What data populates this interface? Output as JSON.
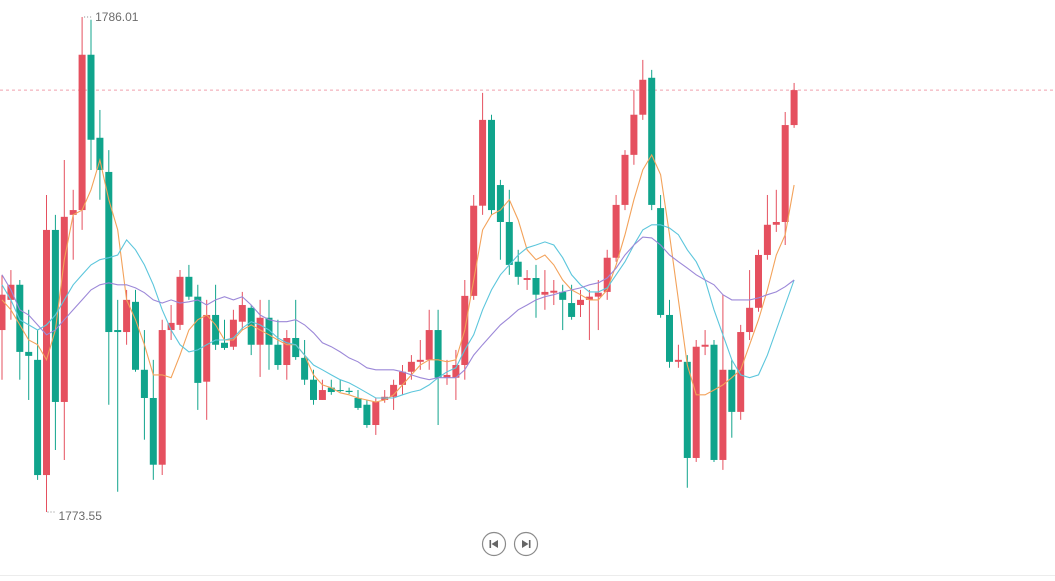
{
  "chart_data": {
    "type": "candlestick",
    "up_color": "#e5505f",
    "down_color": "#10a48c",
    "open": [
      1778.13,
      1778.89,
      1779.27,
      1777.58,
      1777.38,
      1774.48,
      1780.65,
      1776.32,
      1781.03,
      1781.15,
      1785.06,
      1782.97,
      1782.11,
      1778.13,
      1778.08,
      1778.84,
      1777.13,
      1776.42,
      1774.74,
      1778.13,
      1778.26,
      1779.47,
      1778.97,
      1776.83,
      1778.51,
      1777.81,
      1777.71,
      1778.34,
      1778.69,
      1777.76,
      1778.44,
      1777.76,
      1777.25,
      1777.93,
      1777.43,
      1776.88,
      1776.37,
      1776.68,
      1776.62,
      1776.6,
      1776.42,
      1776.25,
      1775.74,
      1776.37,
      1776.45,
      1776.75,
      1777.08,
      1777.33,
      1777.38,
      1778.13,
      1776.93,
      1776.93,
      1777.25,
      1778.99,
      1781.26,
      1783.42,
      1781.78,
      1780.85,
      1779.85,
      1779.39,
      1779.44,
      1779.02,
      1779.07,
      1779.09,
      1778.81,
      1778.76,
      1778.89,
      1778.97,
      1779.09,
      1779.95,
      1781.28,
      1782.54,
      1783.55,
      1784.48,
      1781.2,
      1778.51,
      1777.33,
      1777.33,
      1774.91,
      1777.71,
      1777.76,
      1774.86,
      1777.13,
      1776.07,
      1778.08,
      1778.69,
      1780.02,
      1780.78,
      1780.85,
      1783.29
    ],
    "close": [
      1779.02,
      1779.27,
      1777.58,
      1777.48,
      1774.48,
      1780.65,
      1776.32,
      1780.98,
      1781.15,
      1785.06,
      1782.92,
      1782.16,
      1778.08,
      1778.08,
      1778.89,
      1777.13,
      1776.42,
      1774.74,
      1778.13,
      1778.31,
      1779.47,
      1778.97,
      1776.8,
      1778.51,
      1777.76,
      1777.68,
      1778.39,
      1778.76,
      1777.76,
      1778.44,
      1777.76,
      1777.25,
      1777.93,
      1777.45,
      1776.88,
      1776.37,
      1776.62,
      1776.57,
      1776.6,
      1776.57,
      1776.17,
      1775.74,
      1776.32,
      1776.45,
      1776.75,
      1777.08,
      1777.33,
      1777.38,
      1778.13,
      1776.93,
      1777.0,
      1777.25,
      1778.99,
      1781.26,
      1783.42,
      1781.15,
      1780.85,
      1779.77,
      1779.47,
      1779.44,
      1779.02,
      1779.09,
      1779.12,
      1778.89,
      1778.46,
      1778.89,
      1778.97,
      1779.07,
      1779.95,
      1781.28,
      1782.54,
      1783.55,
      1784.43,
      1781.28,
      1778.51,
      1777.33,
      1777.38,
      1774.91,
      1777.71,
      1777.76,
      1774.86,
      1777.13,
      1776.07,
      1778.08,
      1778.69,
      1780.02,
      1780.78,
      1780.85,
      1783.29,
      1784.17
    ],
    "low": [
      1776.88,
      1778.39,
      1776.88,
      1776.37,
      1774.36,
      1773.55,
      1775.11,
      1774.86,
      1779.9,
      1780.65,
      1782.16,
      1781.41,
      1776.25,
      1774.06,
      1777.76,
      1777.08,
      1775.37,
      1774.36,
      1774.48,
      1777.88,
      1778.13,
      1778.89,
      1776.12,
      1775.87,
      1777.63,
      1777.63,
      1777.63,
      1778.13,
      1777.5,
      1776.95,
      1777.13,
      1777.13,
      1776.88,
      1777.38,
      1776.75,
      1776.25,
      1776.37,
      1776.5,
      1776.57,
      1776.52,
      1776.12,
      1775.67,
      1775.49,
      1776.3,
      1776.12,
      1776.5,
      1776.88,
      1777.13,
      1777.13,
      1775.74,
      1776.75,
      1776.37,
      1776.88,
      1778.89,
      1781.03,
      1781.03,
      1779.9,
      1779.52,
      1779.27,
      1779.14,
      1778.44,
      1778.64,
      1778.76,
      1778.13,
      1778.39,
      1778.46,
      1777.88,
      1778.13,
      1778.89,
      1779.85,
      1781.15,
      1782.29,
      1783.42,
      1781.15,
      1778.44,
      1777.18,
      1777.18,
      1774.16,
      1774.81,
      1777.5,
      1774.81,
      1774.61,
      1775.42,
      1775.87,
      1777.88,
      1778.59,
      1779.9,
      1780.6,
      1780.27,
      1783.22
    ],
    "high": [
      1779.52,
      1779.64,
      1779.39,
      1778.64,
      1778.13,
      1781.53,
      1781.03,
      1782.41,
      1781.66,
      1786.01,
      1785.94,
      1783.67,
      1782.66,
      1778.89,
      1779.14,
      1779.14,
      1778.13,
      1777.38,
      1778.39,
      1778.76,
      1779.64,
      1779.77,
      1779.27,
      1778.89,
      1779.27,
      1778.39,
      1778.64,
      1779.09,
      1778.76,
      1778.89,
      1778.89,
      1778.39,
      1778.13,
      1778.89,
      1777.88,
      1777.13,
      1776.88,
      1776.88,
      1776.88,
      1776.68,
      1776.62,
      1776.37,
      1776.42,
      1776.62,
      1776.88,
      1777.25,
      1777.5,
      1777.88,
      1778.64,
      1778.64,
      1777.38,
      1777.63,
      1779.39,
      1781.53,
      1784.1,
      1783.55,
      1781.91,
      1781.66,
      1780.15,
      1779.64,
      1779.77,
      1779.64,
      1779.39,
      1779.27,
      1779.27,
      1779.14,
      1779.14,
      1779.39,
      1780.15,
      1781.53,
      1782.66,
      1784.17,
      1784.93,
      1784.68,
      1781.53,
      1778.89,
      1777.76,
      1777.5,
      1777.88,
      1778.13,
      1777.88,
      1779.02,
      1777.38,
      1778.26,
      1779.64,
      1780.15,
      1781.53,
      1781.66,
      1783.62,
      1784.35
    ],
    "series": [
      {
        "color": "#f3a25a",
        "values": [
          1778.89,
          1778.64,
          1778.26,
          1777.88,
          1777.76,
          1777.38,
          1778.13,
          1779.9,
          1781.03,
          1781.15,
          1781.66,
          1782.41,
          1781.41,
          1780.65,
          1778.89,
          1778.39,
          1777.76,
          1777.0,
          1777.0,
          1776.93,
          1777.5,
          1778.13,
          1778.39,
          1778.51,
          1778.26,
          1777.88,
          1777.88,
          1778.13,
          1778.26,
          1778.13,
          1778.01,
          1777.88,
          1777.76,
          1777.76,
          1777.5,
          1777.0,
          1776.75,
          1776.68,
          1776.55,
          1776.5,
          1776.42,
          1776.37,
          1776.32,
          1776.37,
          1776.5,
          1776.75,
          1777.0,
          1777.25,
          1777.38,
          1777.38,
          1777.33,
          1777.38,
          1778.13,
          1779.39,
          1780.65,
          1781.03,
          1781.15,
          1781.41,
          1780.9,
          1780.15,
          1779.9,
          1780.02,
          1779.77,
          1779.39,
          1779.14,
          1779.02,
          1778.89,
          1778.89,
          1779.14,
          1779.77,
          1780.53,
          1781.41,
          1782.16,
          1782.54,
          1782.04,
          1780.53,
          1778.89,
          1777.25,
          1776.5,
          1776.5,
          1776.62,
          1776.75,
          1776.93,
          1777.13,
          1777.76,
          1778.39,
          1779.14,
          1780.02,
          1780.53,
          1781.78
        ]
      },
      {
        "color": "#5cc6dc",
        "values": [
          1779.27,
          1778.89,
          1778.39,
          1778.26,
          1778.13,
          1778.26,
          1778.51,
          1778.89,
          1779.27,
          1779.52,
          1779.77,
          1779.9,
          1779.95,
          1780.02,
          1780.4,
          1780.15,
          1779.77,
          1779.27,
          1778.64,
          1778.13,
          1777.76,
          1777.58,
          1777.63,
          1777.76,
          1777.88,
          1777.88,
          1777.93,
          1778.18,
          1778.34,
          1778.26,
          1778.13,
          1777.93,
          1777.81,
          1777.76,
          1777.5,
          1777.25,
          1777.13,
          1777.0,
          1776.88,
          1776.8,
          1776.68,
          1776.55,
          1776.42,
          1776.42,
          1776.42,
          1776.5,
          1776.57,
          1776.62,
          1776.75,
          1776.93,
          1777.08,
          1777.18,
          1777.63,
          1778.01,
          1778.64,
          1779.14,
          1779.52,
          1779.77,
          1780.02,
          1780.2,
          1780.27,
          1780.35,
          1780.27,
          1779.95,
          1779.52,
          1779.27,
          1779.09,
          1779.09,
          1779.19,
          1779.52,
          1779.85,
          1780.27,
          1780.65,
          1780.78,
          1780.78,
          1780.7,
          1780.53,
          1780.15,
          1779.85,
          1779.39,
          1778.64,
          1778.01,
          1777.38,
          1777.0,
          1776.93,
          1777.0,
          1777.5,
          1778.13,
          1778.76,
          1779.39
        ]
      },
      {
        "color": "#9c88d8",
        "values": [
          1779.52,
          1779.14,
          1778.64,
          1778.51,
          1778.26,
          1778.01,
          1778.13,
          1778.39,
          1778.64,
          1778.89,
          1779.14,
          1779.27,
          1779.32,
          1779.27,
          1779.27,
          1779.19,
          1779.07,
          1778.89,
          1778.81,
          1778.89,
          1778.81,
          1778.84,
          1778.89,
          1778.76,
          1778.89,
          1778.97,
          1778.89,
          1778.97,
          1778.76,
          1778.51,
          1778.39,
          1778.34,
          1778.34,
          1778.39,
          1778.26,
          1778.06,
          1777.81,
          1777.71,
          1777.58,
          1777.43,
          1777.33,
          1777.18,
          1777.13,
          1777.13,
          1777.13,
          1777.08,
          1777.0,
          1776.93,
          1776.88,
          1776.93,
          1776.93,
          1776.93,
          1777.13,
          1777.5,
          1777.76,
          1778.01,
          1778.26,
          1778.44,
          1778.64,
          1778.76,
          1778.89,
          1778.97,
          1779.02,
          1779.09,
          1779.14,
          1779.19,
          1779.27,
          1779.32,
          1779.44,
          1779.69,
          1780.02,
          1780.27,
          1780.47,
          1780.45,
          1780.27,
          1780.02,
          1779.85,
          1779.69,
          1779.52,
          1779.39,
          1779.27,
          1779.02,
          1778.89,
          1778.89,
          1778.89,
          1778.94,
          1779.02,
          1779.09,
          1779.22,
          1779.39
        ]
      }
    ]
  }
}
